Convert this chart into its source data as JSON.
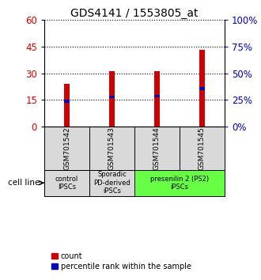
{
  "title": "GDS4141 / 1553805_at",
  "samples": [
    "GSM701542",
    "GSM701543",
    "GSM701544",
    "GSM701545"
  ],
  "count_values": [
    24,
    31,
    31,
    43
  ],
  "percentile_values": [
    25,
    29,
    30,
    37
  ],
  "left_ylim": [
    0,
    60
  ],
  "right_ylim": [
    0,
    100
  ],
  "left_yticks": [
    0,
    15,
    30,
    45,
    60
  ],
  "right_yticks": [
    0,
    25,
    50,
    75,
    100
  ],
  "left_ylabel_color": "#dd0000",
  "right_ylabel_color": "#0000cc",
  "bar_color_red": "#cc0000",
  "bar_color_blue": "#0000bb",
  "bar_width": 0.12,
  "title_fontsize": 10,
  "groups": [
    {
      "label": "control\nIPSCs",
      "start": 0,
      "end": 1,
      "color": "#d9d9d9"
    },
    {
      "label": "Sporadic\nPD-derived\niPSCs",
      "start": 1,
      "end": 2,
      "color": "#d9d9d9"
    },
    {
      "label": "presenilin 2 (PS2)\niPSCs",
      "start": 2,
      "end": 4,
      "color": "#66ff44"
    }
  ],
  "cell_line_label": "cell line",
  "legend_count_label": "count",
  "legend_percentile_label": "percentile rank within the sample",
  "bg_color": "#ffffff",
  "plot_bg_color": "#ffffff",
  "sample_area_color": "#d9d9d9"
}
